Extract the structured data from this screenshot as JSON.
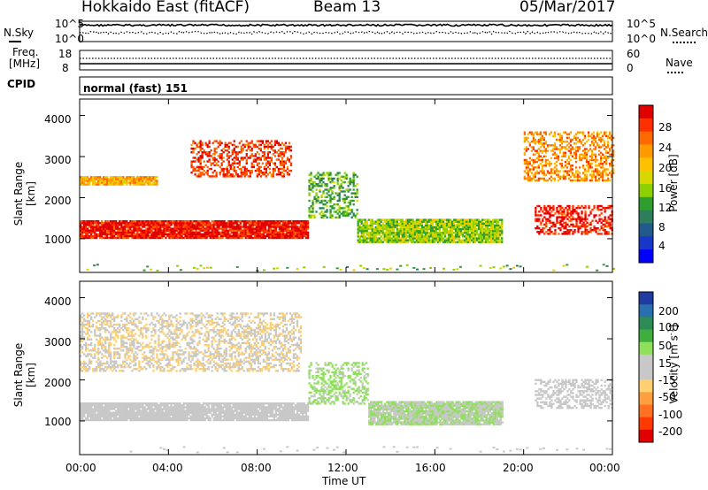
{
  "header": {
    "site": "Hokkaido East (fitACF)",
    "beam": "Beam 13",
    "date": "05/Mar/2017"
  },
  "noise_panel": {
    "left_label": "N.Sky",
    "right_label": "N.Search",
    "left_ticks": [
      "10^5",
      "10^0"
    ],
    "right_ticks": [
      "10^5",
      "10^0"
    ]
  },
  "freq_panel": {
    "label_line1": "Freq.",
    "label_line2": "[MHz]",
    "left_ticks": [
      "18",
      "8"
    ],
    "right_ticks": [
      "60",
      "0"
    ],
    "right_label": "Nave"
  },
  "cpid": {
    "label": "CPID",
    "value": "normal (fast) 151"
  },
  "power_panel": {
    "ylabel": "Slant Range [km]",
    "yticks": [
      "4000",
      "3000",
      "2000",
      "1000"
    ],
    "colorbar_label": "Power [dB]",
    "colorbar_ticks": [
      "28",
      "24",
      "20",
      "16",
      "12",
      "8",
      "4"
    ],
    "colorbar_colors": [
      "#e00000",
      "#ff3000",
      "#ff6a00",
      "#ff9a00",
      "#ffc000",
      "#d8d800",
      "#8ed000",
      "#2f9e2f",
      "#2e7d5b",
      "#1f5a8a",
      "#1836c8",
      "#0000ff"
    ]
  },
  "velocity_panel": {
    "ylabel": "Slant Range [km]",
    "yticks": [
      "4000",
      "3000",
      "2000",
      "1000"
    ],
    "colorbar_label": "Velocity [m s",
    "colorbar_label_sup": "-1",
    "colorbar_label_end": "]",
    "colorbar_ticks": [
      "200",
      "100",
      "50",
      "15",
      "-15",
      "-50",
      "-100",
      "-200"
    ],
    "colorbar_colors": [
      "#1f3aa0",
      "#2a6fb0",
      "#2e8b57",
      "#3fae3f",
      "#8fe05a",
      "#c8c8c8",
      "#c8c8c8",
      "#ffd070",
      "#ffa040",
      "#ff7020",
      "#ff3a00",
      "#e00000"
    ]
  },
  "xaxis": {
    "label": "Time UT",
    "ticks": [
      "00:00",
      "04:00",
      "08:00",
      "12:00",
      "16:00",
      "20:00",
      "00:00"
    ]
  },
  "chart_data": [
    {
      "type": "heatmap",
      "title": "Power [dB]",
      "xlabel": "Time UT",
      "ylabel": "Slant Range [km]",
      "xlim": [
        0,
        24
      ],
      "ylim": [
        180,
        4400
      ],
      "zlim": [
        0,
        30
      ],
      "features": [
        {
          "t0": 0.0,
          "t1": 10.3,
          "r0": 1000,
          "r1": 1450,
          "power": 28
        },
        {
          "t0": 0.0,
          "t1": 3.5,
          "r0": 2300,
          "r1": 2500,
          "power": 20
        },
        {
          "t0": 5.0,
          "t1": 9.5,
          "r0": 2500,
          "r1": 3400,
          "power": 26
        },
        {
          "t0": 10.3,
          "t1": 12.5,
          "r0": 1500,
          "r1": 2600,
          "power": 12
        },
        {
          "t0": 12.5,
          "t1": 19.0,
          "r0": 900,
          "r1": 1450,
          "power": 14
        },
        {
          "t0": 20.5,
          "t1": 24.0,
          "r0": 1100,
          "r1": 1800,
          "power": 28
        },
        {
          "t0": 20.0,
          "t1": 24.0,
          "r0": 2400,
          "r1": 3600,
          "power": 22
        }
      ]
    },
    {
      "type": "heatmap",
      "title": "Velocity [m s-1]",
      "xlabel": "Time UT",
      "ylabel": "Slant Range [km]",
      "xlim": [
        0,
        24
      ],
      "ylim": [
        180,
        4400
      ],
      "zlim": [
        -200,
        200
      ],
      "features": [
        {
          "t0": 0.0,
          "t1": 10.3,
          "r0": 1000,
          "r1": 1450,
          "velocity": 0
        },
        {
          "t0": 0.0,
          "t1": 10.0,
          "r0": 2200,
          "r1": 3600,
          "velocity": -30
        },
        {
          "t0": 10.3,
          "t1": 13.0,
          "r0": 1400,
          "r1": 2400,
          "velocity": 40
        },
        {
          "t0": 13.0,
          "t1": 19.0,
          "r0": 900,
          "r1": 1450,
          "velocity": 30
        },
        {
          "t0": 20.5,
          "t1": 24.0,
          "r0": 1300,
          "r1": 2000,
          "velocity": 0
        }
      ]
    },
    {
      "type": "line",
      "title": "N.Sky / N.Search",
      "series": [
        {
          "name": "N.Sky",
          "style": "solid"
        },
        {
          "name": "N.Search",
          "style": "dotted"
        }
      ]
    }
  ]
}
